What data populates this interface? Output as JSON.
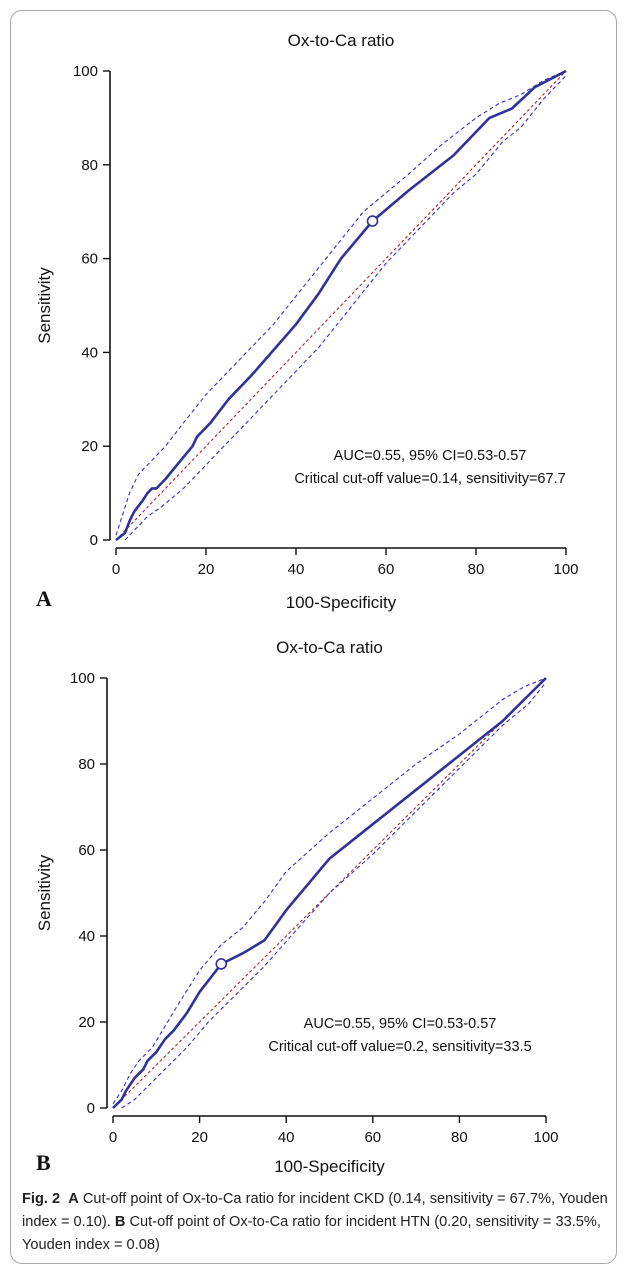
{
  "chart_data": [
    {
      "type": "line",
      "panel_label": "A",
      "title": "Ox-to-Ca ratio",
      "xlabel": "100-Specificity",
      "ylabel": "Sensitivity",
      "xlim": [
        0,
        100
      ],
      "ylim": [
        0,
        100
      ],
      "x_ticks": [
        "0",
        "20",
        "40",
        "60",
        "80",
        "100"
      ],
      "y_ticks": [
        "0",
        "20",
        "40",
        "60",
        "80",
        "100"
      ],
      "annotation_line1": "AUC=0.55, 95% CI=0.53-0.57",
      "annotation_line2": "Critical cut-off value=0.14, sensitivity=67.7",
      "roc": [
        [
          0,
          0
        ],
        [
          2,
          1.5
        ],
        [
          3,
          4
        ],
        [
          4,
          6
        ],
        [
          6,
          8.5
        ],
        [
          7,
          10
        ],
        [
          8,
          11
        ],
        [
          9,
          11
        ],
        [
          11,
          13
        ],
        [
          14,
          16.5
        ],
        [
          17,
          20
        ],
        [
          18,
          22
        ],
        [
          21,
          25
        ],
        [
          25,
          30
        ],
        [
          30,
          35
        ],
        [
          35,
          40.5
        ],
        [
          40,
          46
        ],
        [
          45,
          52.5
        ],
        [
          50,
          60
        ],
        [
          57,
          68
        ],
        [
          65,
          74.5
        ],
        [
          75,
          82
        ],
        [
          83,
          90
        ],
        [
          88,
          92
        ],
        [
          93,
          96.5
        ],
        [
          100,
          100
        ]
      ],
      "ci_upper": [
        [
          0,
          1
        ],
        [
          1,
          4
        ],
        [
          2,
          7
        ],
        [
          3,
          10
        ],
        [
          5,
          14
        ],
        [
          8,
          17
        ],
        [
          11,
          20
        ],
        [
          15,
          25
        ],
        [
          20,
          31
        ],
        [
          25,
          36
        ],
        [
          30,
          41
        ],
        [
          35,
          46
        ],
        [
          40,
          52
        ],
        [
          45,
          58
        ],
        [
          50,
          64
        ],
        [
          55,
          70
        ],
        [
          60,
          74
        ],
        [
          65,
          78
        ],
        [
          72,
          84
        ],
        [
          80,
          90
        ],
        [
          85,
          93
        ],
        [
          90,
          95
        ],
        [
          95,
          98
        ],
        [
          100,
          100
        ]
      ],
      "ci_lower": [
        [
          2,
          0
        ],
        [
          4,
          2
        ],
        [
          7,
          5
        ],
        [
          10,
          7
        ],
        [
          15,
          11
        ],
        [
          20,
          16
        ],
        [
          25,
          21
        ],
        [
          30,
          26
        ],
        [
          35,
          31
        ],
        [
          40,
          36
        ],
        [
          45,
          41
        ],
        [
          50,
          47
        ],
        [
          55,
          53
        ],
        [
          60,
          59
        ],
        [
          65,
          64
        ],
        [
          70,
          69
        ],
        [
          75,
          74
        ],
        [
          80,
          78
        ],
        [
          86,
          85
        ],
        [
          90,
          88
        ],
        [
          95,
          94
        ],
        [
          100,
          99
        ]
      ],
      "reference": [
        [
          0,
          0
        ],
        [
          100,
          100
        ]
      ],
      "cutoff_point": [
        57,
        68
      ]
    },
    {
      "type": "line",
      "panel_label": "B",
      "title": "Ox-to-Ca ratio",
      "xlabel": "100-Specificity",
      "ylabel": "Sensitivity",
      "xlim": [
        0,
        100
      ],
      "ylim": [
        0,
        100
      ],
      "x_ticks": [
        "0",
        "20",
        "40",
        "60",
        "80",
        "100"
      ],
      "y_ticks": [
        "0",
        "20",
        "40",
        "60",
        "80",
        "100"
      ],
      "annotation_line1": "AUC=0.55, 95% CI=0.53-0.57",
      "annotation_line2": "Critical cut-off value=0.2, sensitivity=33.5",
      "roc": [
        [
          0,
          0
        ],
        [
          2,
          2
        ],
        [
          3,
          4
        ],
        [
          5,
          7
        ],
        [
          7,
          9
        ],
        [
          8,
          11
        ],
        [
          10,
          13
        ],
        [
          12,
          16
        ],
        [
          14,
          18
        ],
        [
          17,
          22
        ],
        [
          20,
          27
        ],
        [
          25,
          33.5
        ],
        [
          30,
          36
        ],
        [
          35,
          39
        ],
        [
          40,
          46
        ],
        [
          50,
          58
        ],
        [
          60,
          66
        ],
        [
          70,
          74
        ],
        [
          80,
          82
        ],
        [
          90,
          90
        ],
        [
          95,
          95
        ],
        [
          100,
          100
        ]
      ],
      "ci_upper": [
        [
          0,
          1
        ],
        [
          2,
          4
        ],
        [
          4,
          8
        ],
        [
          6,
          11
        ],
        [
          9,
          14
        ],
        [
          12,
          19
        ],
        [
          15,
          24
        ],
        [
          20,
          32
        ],
        [
          25,
          38
        ],
        [
          30,
          42
        ],
        [
          35,
          48
        ],
        [
          40,
          55
        ],
        [
          50,
          64
        ],
        [
          60,
          72
        ],
        [
          70,
          80
        ],
        [
          80,
          87
        ],
        [
          90,
          95
        ],
        [
          95,
          98
        ],
        [
          100,
          100
        ]
      ],
      "ci_lower": [
        [
          2,
          0
        ],
        [
          5,
          2
        ],
        [
          8,
          5
        ],
        [
          12,
          9
        ],
        [
          17,
          14
        ],
        [
          22,
          20
        ],
        [
          28,
          26
        ],
        [
          35,
          33
        ],
        [
          42,
          41
        ],
        [
          50,
          50
        ],
        [
          60,
          59
        ],
        [
          70,
          69
        ],
        [
          80,
          79
        ],
        [
          90,
          89
        ],
        [
          96,
          94
        ],
        [
          100,
          99
        ]
      ],
      "reference": [
        [
          0,
          0
        ],
        [
          100,
          100
        ]
      ],
      "cutoff_point": [
        25,
        33.5
      ]
    }
  ],
  "caption": {
    "fig_label": "Fig. 2",
    "a_label": "A",
    "a_text": "Cut-off point of Ox-to-Ca ratio for incident CKD (0.14, sensitivity = 67.7%, Youden index = 0.10).",
    "b_label": "B",
    "b_text": "Cut-off point of Ox-to-Ca ratio for incident HTN (0.20, sensitivity = 33.5%, Youden index = 0.08)"
  },
  "colors": {
    "roc": "#30319a",
    "ci": "#3333bb",
    "reference": "#a02a2a",
    "axis": "#111111"
  }
}
